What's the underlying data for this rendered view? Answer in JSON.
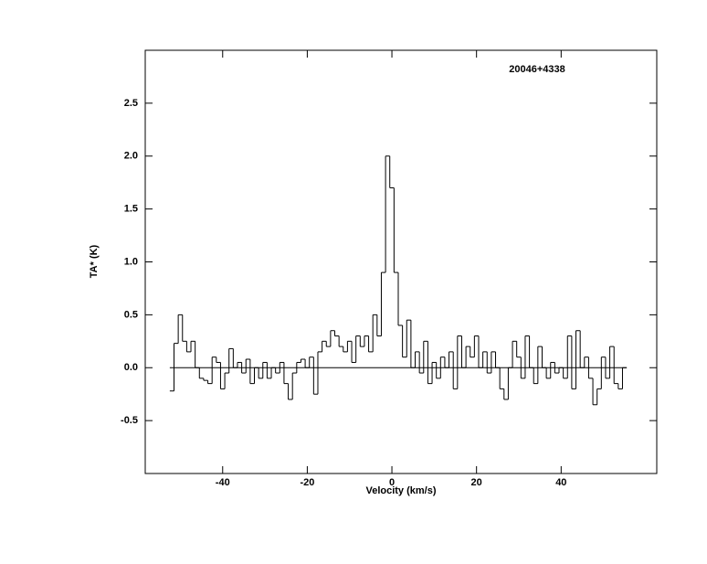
{
  "chart_data": {
    "type": "step",
    "title": "20046+4338",
    "xlabel": "Velocity (km/s)",
    "ylabel": "TA* (K)",
    "x": [
      -52,
      -51,
      -50,
      -49,
      -48,
      -47,
      -46,
      -45,
      -44,
      -43,
      -42,
      -41,
      -40,
      -39,
      -38,
      -37,
      -36,
      -35,
      -34,
      -33,
      -32,
      -31,
      -30,
      -29,
      -28,
      -27,
      -26,
      -25,
      -24,
      -23,
      -22,
      -21,
      -20,
      -19,
      -18,
      -17,
      -16,
      -15,
      -14,
      -13,
      -12,
      -11,
      -10,
      -9,
      -8,
      -7,
      -6,
      -5,
      -4,
      -3,
      -2,
      -1,
      0,
      1,
      2,
      3,
      4,
      5,
      6,
      7,
      8,
      9,
      10,
      11,
      12,
      13,
      14,
      15,
      16,
      17,
      18,
      19,
      20,
      21,
      22,
      23,
      24,
      25,
      26,
      27,
      28,
      29,
      30,
      31,
      32,
      33,
      34,
      35,
      36,
      37,
      38,
      39,
      40,
      41,
      42,
      43,
      44,
      45,
      46,
      47,
      48,
      49,
      50,
      51,
      52,
      53,
      54,
      55
    ],
    "values": [
      -0.22,
      0.23,
      0.5,
      0.25,
      0.15,
      0.25,
      0.0,
      -0.1,
      -0.12,
      -0.15,
      0.1,
      0.05,
      -0.2,
      -0.05,
      0.18,
      0.0,
      0.05,
      -0.05,
      0.08,
      -0.15,
      0.0,
      -0.1,
      0.05,
      -0.1,
      0.0,
      -0.05,
      0.05,
      -0.15,
      -0.3,
      -0.05,
      0.05,
      0.08,
      0.0,
      0.1,
      -0.25,
      0.15,
      0.25,
      0.2,
      0.35,
      0.3,
      0.2,
      0.15,
      0.25,
      0.05,
      0.3,
      0.2,
      0.3,
      0.15,
      0.5,
      0.3,
      0.9,
      2.0,
      1.7,
      0.9,
      0.4,
      0.1,
      0.45,
      0.0,
      0.15,
      -0.05,
      0.25,
      -0.15,
      0.05,
      -0.1,
      0.1,
      0.0,
      0.15,
      -0.2,
      0.3,
      0.0,
      0.2,
      0.1,
      0.3,
      0.0,
      0.15,
      -0.05,
      0.15,
      0.0,
      -0.2,
      -0.3,
      0.0,
      0.25,
      0.1,
      -0.1,
      0.3,
      0.0,
      -0.15,
      0.2,
      0.0,
      -0.1,
      0.05,
      -0.05,
      0.0,
      -0.1,
      0.3,
      -0.2,
      0.35,
      0.0,
      0.1,
      -0.1,
      -0.35,
      -0.2,
      0.1,
      -0.1,
      0.2,
      -0.15,
      -0.2,
      0.0
    ],
    "color": "#000000",
    "xlim": [
      -58.3,
      62.6
    ],
    "ylim": [
      -1.0,
      3.0
    ],
    "xticks": [
      -40,
      -20,
      0,
      20,
      40
    ],
    "yticks": [
      -0.5,
      {
        "value": 0,
        "label": "0.0"
      },
      0.5,
      {
        "value": 1,
        "label": "1.0"
      },
      1.5,
      {
        "value": 2,
        "label": "2.0"
      },
      2.5
    ],
    "zero_line": true
  }
}
